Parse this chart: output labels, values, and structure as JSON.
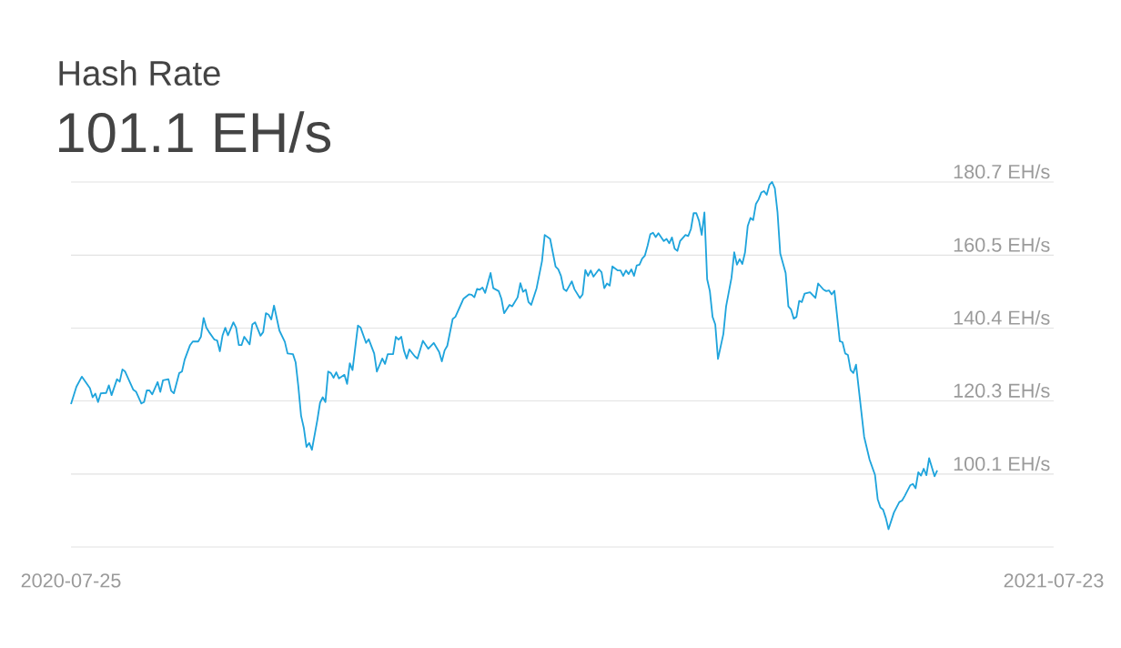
{
  "chart_data": {
    "type": "line",
    "title": "Hash Rate",
    "subtitle": "101.1 EH/s",
    "color": "#1fa4dc",
    "grid": "y",
    "xlim": [
      "2020-07-25",
      "2021-07-23"
    ],
    "xticks": [
      "2020-07-25",
      "2021-07-23"
    ],
    "ylim": [
      80.0,
      180.7
    ],
    "yticks": [
      {
        "value": 80.0,
        "label": null
      },
      {
        "value": 100.1,
        "label": "100.1 EH/s"
      },
      {
        "value": 120.3,
        "label": "120.3 EH/s"
      },
      {
        "value": 140.4,
        "label": "140.4 EH/s"
      },
      {
        "value": 160.5,
        "label": "160.5 EH/s"
      },
      {
        "value": 180.7,
        "label": "180.7 EH/s"
      }
    ],
    "x": [
      "2020-07-25",
      "2020-07-27",
      "2020-07-29",
      "2020-08-01",
      "2020-08-02",
      "2020-08-03",
      "2020-08-04",
      "2020-08-05",
      "2020-08-07",
      "2020-08-08",
      "2020-08-09",
      "2020-08-11",
      "2020-08-12",
      "2020-08-13",
      "2020-08-14",
      "2020-08-17",
      "2020-08-18",
      "2020-08-20",
      "2020-08-21",
      "2020-08-22",
      "2020-08-23",
      "2020-08-24",
      "2020-08-26",
      "2020-08-27",
      "2020-08-28",
      "2020-08-30",
      "2020-08-31",
      "2020-09-01",
      "2020-09-03",
      "2020-09-04",
      "2020-09-05",
      "2020-09-07",
      "2020-09-08",
      "2020-09-10",
      "2020-09-11",
      "2020-09-12",
      "2020-09-13",
      "2020-09-14",
      "2020-09-16",
      "2020-09-17",
      "2020-09-18",
      "2020-09-19",
      "2020-09-20",
      "2020-09-21",
      "2020-09-23",
      "2020-09-24",
      "2020-09-25",
      "2020-09-26",
      "2020-09-27",
      "2020-09-29",
      "2020-09-30",
      "2020-10-01",
      "2020-10-03",
      "2020-10-04",
      "2020-10-05",
      "2020-10-06",
      "2020-10-07",
      "2020-10-08",
      "2020-10-10",
      "2020-10-12",
      "2020-10-13",
      "2020-10-15",
      "2020-10-16",
      "2020-10-17",
      "2020-10-18",
      "2020-10-19",
      "2020-10-20",
      "2020-10-21",
      "2020-10-22",
      "2020-10-24",
      "2020-10-25",
      "2020-10-26",
      "2020-10-27",
      "2020-10-28",
      "2020-10-29",
      "2020-10-30",
      "2020-10-31",
      "2020-11-01",
      "2020-11-03",
      "2020-11-04",
      "2020-11-05",
      "2020-11-06",
      "2020-11-08",
      "2020-11-09",
      "2020-11-11",
      "2020-11-12",
      "2020-11-14",
      "2020-11-15",
      "2020-11-17",
      "2020-11-18",
      "2020-11-19",
      "2020-11-21",
      "2020-11-22",
      "2020-11-23",
      "2020-11-24",
      "2020-11-25",
      "2020-11-26",
      "2020-11-27",
      "2020-11-29",
      "2020-11-30",
      "2020-12-02",
      "2020-12-04",
      "2020-12-06",
      "2020-12-08",
      "2020-12-09",
      "2020-12-10",
      "2020-12-11",
      "2020-12-13",
      "2020-12-14",
      "2020-12-17",
      "2020-12-19",
      "2020-12-20",
      "2020-12-21",
      "2020-12-22",
      "2020-12-23",
      "2020-12-24",
      "2020-12-25",
      "2020-12-27",
      "2020-12-28",
      "2020-12-30",
      "2020-12-31",
      "2021-01-01",
      "2021-01-03",
      "2021-01-04",
      "2021-01-06",
      "2021-01-07",
      "2021-01-08",
      "2021-01-09",
      "2021-01-10",
      "2021-01-11",
      "2021-01-13",
      "2021-01-15",
      "2021-01-16",
      "2021-01-18",
      "2021-01-20",
      "2021-01-21",
      "2021-01-22",
      "2021-01-23",
      "2021-01-24",
      "2021-01-26",
      "2021-01-27",
      "2021-01-29",
      "2021-01-30",
      "2021-01-31",
      "2021-02-01",
      "2021-02-02",
      "2021-02-03",
      "2021-02-05",
      "2021-02-06",
      "2021-02-07",
      "2021-02-08",
      "2021-02-09",
      "2021-02-10",
      "2021-02-12",
      "2021-02-13",
      "2021-02-14",
      "2021-02-15",
      "2021-02-16",
      "2021-02-17",
      "2021-02-18",
      "2021-02-19",
      "2021-02-20",
      "2021-02-21",
      "2021-02-22",
      "2021-02-23",
      "2021-02-24",
      "2021-02-25",
      "2021-02-26",
      "2021-02-27",
      "2021-03-01",
      "2021-03-02",
      "2021-03-03",
      "2021-03-04",
      "2021-03-05",
      "2021-03-06",
      "2021-03-07",
      "2021-03-09",
      "2021-03-10",
      "2021-03-11",
      "2021-03-12",
      "2021-03-13",
      "2021-03-14",
      "2021-03-15",
      "2021-03-16",
      "2021-03-17",
      "2021-03-18",
      "2021-03-19",
      "2021-03-20",
      "2021-03-21",
      "2021-03-23",
      "2021-03-24",
      "2021-03-26",
      "2021-03-27",
      "2021-03-28",
      "2021-03-29",
      "2021-03-30",
      "2021-03-31",
      "2021-04-01",
      "2021-04-02",
      "2021-04-03",
      "2021-04-04",
      "2021-04-05",
      "2021-04-06",
      "2021-04-07",
      "2021-04-08",
      "2021-04-09",
      "2021-04-10",
      "2021-04-11",
      "2021-04-12",
      "2021-04-13",
      "2021-04-15",
      "2021-04-16",
      "2021-04-17",
      "2021-04-18",
      "2021-04-19",
      "2021-04-20",
      "2021-04-21",
      "2021-04-22",
      "2021-04-24",
      "2021-04-26",
      "2021-04-27",
      "2021-04-29",
      "2021-04-30",
      "2021-05-01",
      "2021-05-02",
      "2021-05-03",
      "2021-05-05",
      "2021-05-06",
      "2021-05-07",
      "2021-05-08",
      "2021-05-09",
      "2021-05-10",
      "2021-05-11",
      "2021-05-14",
      "2021-05-16",
      "2021-05-18",
      "2021-05-19",
      "2021-05-20",
      "2021-05-21",
      "2021-05-22",
      "2021-05-23",
      "2021-05-25",
      "2021-05-27",
      "2021-05-28",
      "2021-05-29",
      "2021-05-31",
      "2021-06-01",
      "2021-06-02",
      "2021-06-03",
      "2021-06-04",
      "2021-06-05",
      "2021-06-06",
      "2021-06-07",
      "2021-06-09",
      "2021-06-10"
    ],
    "values": [
      119.4,
      124.2,
      127.0,
      123.8,
      121.3,
      122.3,
      120.0,
      122.4,
      122.5,
      124.6,
      121.9,
      126.3,
      125.6,
      129.0,
      128.4,
      123.4,
      122.9,
      119.6,
      120.0,
      123.2,
      123.2,
      122.1,
      125.5,
      122.8,
      126.0,
      126.3,
      123.1,
      122.4,
      128.0,
      128.4,
      131.7,
      135.7,
      136.7,
      136.7,
      138.0,
      143.2,
      140.5,
      139.3,
      137.2,
      137.0,
      134.0,
      138.4,
      140.5,
      138.4,
      142.0,
      140.5,
      135.7,
      135.7,
      138.0,
      135.9,
      141.4,
      142.0,
      138.3,
      139.3,
      144.5,
      144.1,
      142.8,
      146.6,
      139.7,
      136.6,
      133.4,
      133.2,
      130.9,
      124.2,
      116.2,
      112.9,
      107.6,
      108.7,
      106.8,
      115.0,
      119.8,
      121.3,
      120.0,
      128.4,
      128.0,
      126.7,
      128.2,
      126.5,
      127.5,
      125.0,
      130.7,
      128.8,
      141.1,
      140.5,
      136.3,
      137.3,
      133.4,
      128.4,
      132.0,
      130.5,
      133.2,
      133.2,
      138.0,
      137.2,
      138.0,
      134.2,
      132.0,
      134.5,
      132.6,
      132.0,
      136.9,
      134.7,
      136.3,
      133.8,
      131.2,
      134.2,
      135.5,
      142.9,
      143.5,
      148.5,
      149.7,
      149.6,
      148.9,
      151.2,
      151.0,
      151.6,
      150.1,
      155.6,
      151.4,
      150.6,
      148.5,
      144.5,
      146.8,
      146.4,
      148.9,
      152.8,
      150.4,
      151.0,
      147.6,
      146.8,
      151.4,
      158.9,
      166.1,
      165.0,
      157.4,
      156.6,
      154.8,
      151.2,
      150.6,
      153.3,
      151.1,
      148.7,
      149.7,
      156.4,
      154.8,
      156.3,
      154.6,
      156.6,
      155.8,
      151.4,
      152.7,
      152.1,
      157.4,
      156.3,
      156.3,
      154.8,
      156.3,
      155.3,
      156.6,
      154.8,
      157.7,
      157.9,
      159.6,
      160.4,
      163.1,
      166.3,
      166.7,
      165.5,
      166.6,
      164.4,
      165.0,
      163.8,
      165.4,
      162.3,
      161.7,
      164.4,
      166.1,
      165.8,
      167.7,
      172.1,
      172.1,
      170.0,
      166.1,
      172.3,
      153.9,
      150.6,
      143.5,
      141.4,
      131.9,
      138.8,
      146.4,
      154.3,
      161.3,
      157.9,
      159.4,
      158.1,
      161.3,
      168.6,
      170.8,
      170.2,
      174.6,
      175.9,
      177.8,
      178.2,
      177.2,
      179.9,
      180.7,
      179.0,
      172.3,
      161.0,
      155.6,
      146.4,
      145.5,
      143.0,
      143.5,
      147.9,
      147.6,
      149.9,
      150.3,
      148.7,
      152.7,
      151.0,
      150.6,
      150.8,
      149.7,
      150.7,
      136.8,
      136.5,
      133.4,
      133.0,
      128.8,
      128.0,
      130.3,
      110.4,
      104.1,
      99.9,
      93.2,
      90.9,
      90.3,
      88.0,
      84.9,
      89.5,
      92.4,
      92.8,
      94.1,
      97.0,
      97.4,
      96.2,
      100.6,
      99.7,
      101.6,
      99.8,
      104.5,
      99.5,
      101.1
    ]
  }
}
